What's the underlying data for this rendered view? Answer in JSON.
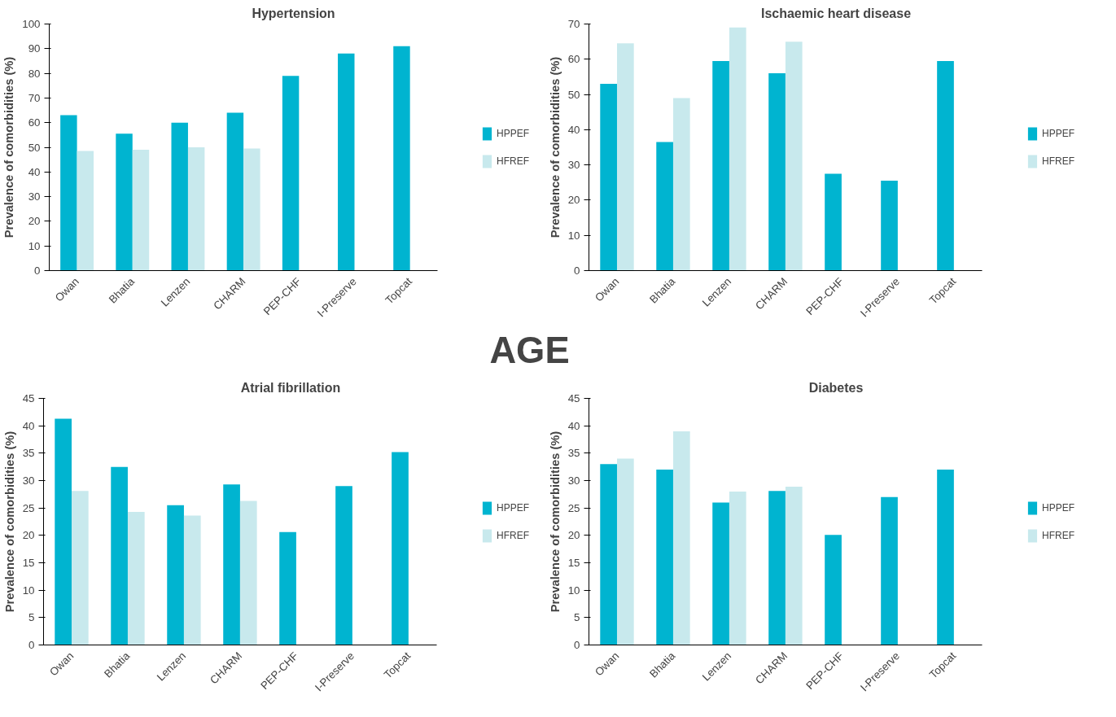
{
  "chart_data": [
    {
      "type": "bar",
      "title": "Hypertension",
      "ylabel": "Prevalence of comorbidities (%)",
      "categories": [
        "Owan",
        "Bhatia",
        "Lenzen",
        "CHARM",
        "PEP-CHF",
        "I-Preserve",
        "Topcat"
      ],
      "ylim": [
        0,
        100
      ],
      "yticks": [
        0,
        10,
        20,
        30,
        40,
        50,
        60,
        70,
        80,
        90,
        100
      ],
      "legend": "right",
      "grid": false,
      "series": [
        {
          "name": "HPPEF",
          "color": "#00b4d0",
          "values": [
            63,
            55.5,
            60,
            64,
            79,
            88,
            91
          ]
        },
        {
          "name": "HFREF",
          "color": "#c8e9ed",
          "values": [
            48.5,
            49,
            50,
            49.5,
            null,
            null,
            null
          ]
        }
      ]
    },
    {
      "type": "bar",
      "title": "Ischaemic heart disease",
      "ylabel": "Prevalence of comorbidities (%)",
      "categories": [
        "Owan",
        "Bhatia",
        "Lenzen",
        "CHARM",
        "PEP-CHF",
        "I-Preserve",
        "Topcat"
      ],
      "ylim": [
        0,
        70
      ],
      "yticks": [
        0,
        10,
        20,
        30,
        40,
        50,
        60,
        70
      ],
      "legend": "right",
      "grid": false,
      "series": [
        {
          "name": "HPPEF",
          "color": "#00b4d0",
          "values": [
            53,
            36.5,
            59.5,
            56,
            27.5,
            25.5,
            59.5
          ]
        },
        {
          "name": "HFREF",
          "color": "#c8e9ed",
          "values": [
            64.5,
            49,
            69,
            65,
            null,
            null,
            null
          ]
        }
      ]
    },
    {
      "type": "other",
      "annotations": [
        "AGE"
      ]
    },
    {
      "type": "bar",
      "title": "Atrial fibrillation",
      "ylabel": "Prevalence of comorbidities (%)",
      "categories": [
        "Owan",
        "Bhatia",
        "Lenzen",
        "CHARM",
        "PEP-CHF",
        "I-Preserve",
        "Topcat"
      ],
      "ylim": [
        0,
        45
      ],
      "yticks": [
        0,
        5,
        10,
        15,
        20,
        25,
        30,
        35,
        40,
        45
      ],
      "legend": "right",
      "grid": false,
      "series": [
        {
          "name": "HPPEF",
          "color": "#00b4d0",
          "values": [
            41.3,
            32.5,
            25.5,
            29.3,
            20.6,
            29,
            35.2
          ]
        },
        {
          "name": "HFREF",
          "color": "#c8e9ed",
          "values": [
            28.1,
            24.3,
            23.6,
            26.3,
            null,
            null,
            null
          ]
        }
      ]
    },
    {
      "type": "bar",
      "title": "Diabetes",
      "ylabel": "Prevalence of comorbidities (%)",
      "categories": [
        "Owan",
        "Bhatia",
        "Lenzen",
        "CHARM",
        "PEP-CHF",
        "I-Preserve",
        "Topcat"
      ],
      "ylim": [
        0,
        45
      ],
      "yticks": [
        0,
        5,
        10,
        15,
        20,
        25,
        30,
        35,
        40,
        45
      ],
      "legend": "right",
      "grid": false,
      "series": [
        {
          "name": "HPPEF",
          "color": "#00b4d0",
          "values": [
            33,
            32,
            26,
            28.1,
            20.1,
            27,
            32
          ]
        },
        {
          "name": "HFREF",
          "color": "#c8e9ed",
          "values": [
            34,
            39,
            28,
            28.9,
            null,
            null,
            null
          ]
        }
      ]
    }
  ]
}
